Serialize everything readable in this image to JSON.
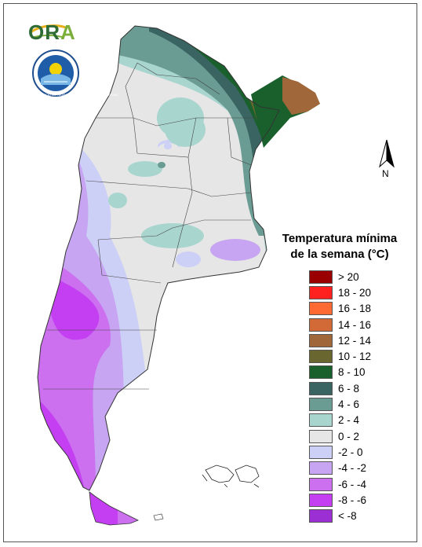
{
  "logo": {
    "wordmark_dark": "OR",
    "wordmark_accent": "A",
    "icon": "ora-logo-icon"
  },
  "seal": {
    "icon": "smn-seal-icon",
    "text": "SERVICIO METEOROLOGICO NACIONAL · ARGENTINA"
  },
  "north_arrow": {
    "label": "N",
    "icon": "north-arrow-icon"
  },
  "legend": {
    "title_line1": "Temperatura mínima",
    "title_line2": "de la semana (°C)",
    "items": [
      {
        "label": "> 20",
        "color": "#9b0000"
      },
      {
        "label": "18 - 20",
        "color": "#ff2020"
      },
      {
        "label": "16 - 18",
        "color": "#ff6a33"
      },
      {
        "label": "14 - 16",
        "color": "#d16a36"
      },
      {
        "label": "12 - 14",
        "color": "#a0673a"
      },
      {
        "label": "10 - 12",
        "color": "#69672f"
      },
      {
        "label": "8 - 10",
        "color": "#19602c"
      },
      {
        "label": "6 - 8",
        "color": "#3a6461"
      },
      {
        "label": "4 - 6",
        "color": "#6a9c94"
      },
      {
        "label": "2 - 4",
        "color": "#a9d5cf"
      },
      {
        "label": "0 - 2",
        "color": "#e6e6e6"
      },
      {
        "label": "-2 - 0",
        "color": "#cdd0f6"
      },
      {
        "label": "-4 - -2",
        "color": "#c7a5f2"
      },
      {
        "label": "-6 - -4",
        "color": "#cc70f0"
      },
      {
        "label": "-8 - -6",
        "color": "#c43ff2"
      },
      {
        "label": "< -8",
        "color": "#9b2fd4"
      }
    ]
  }
}
